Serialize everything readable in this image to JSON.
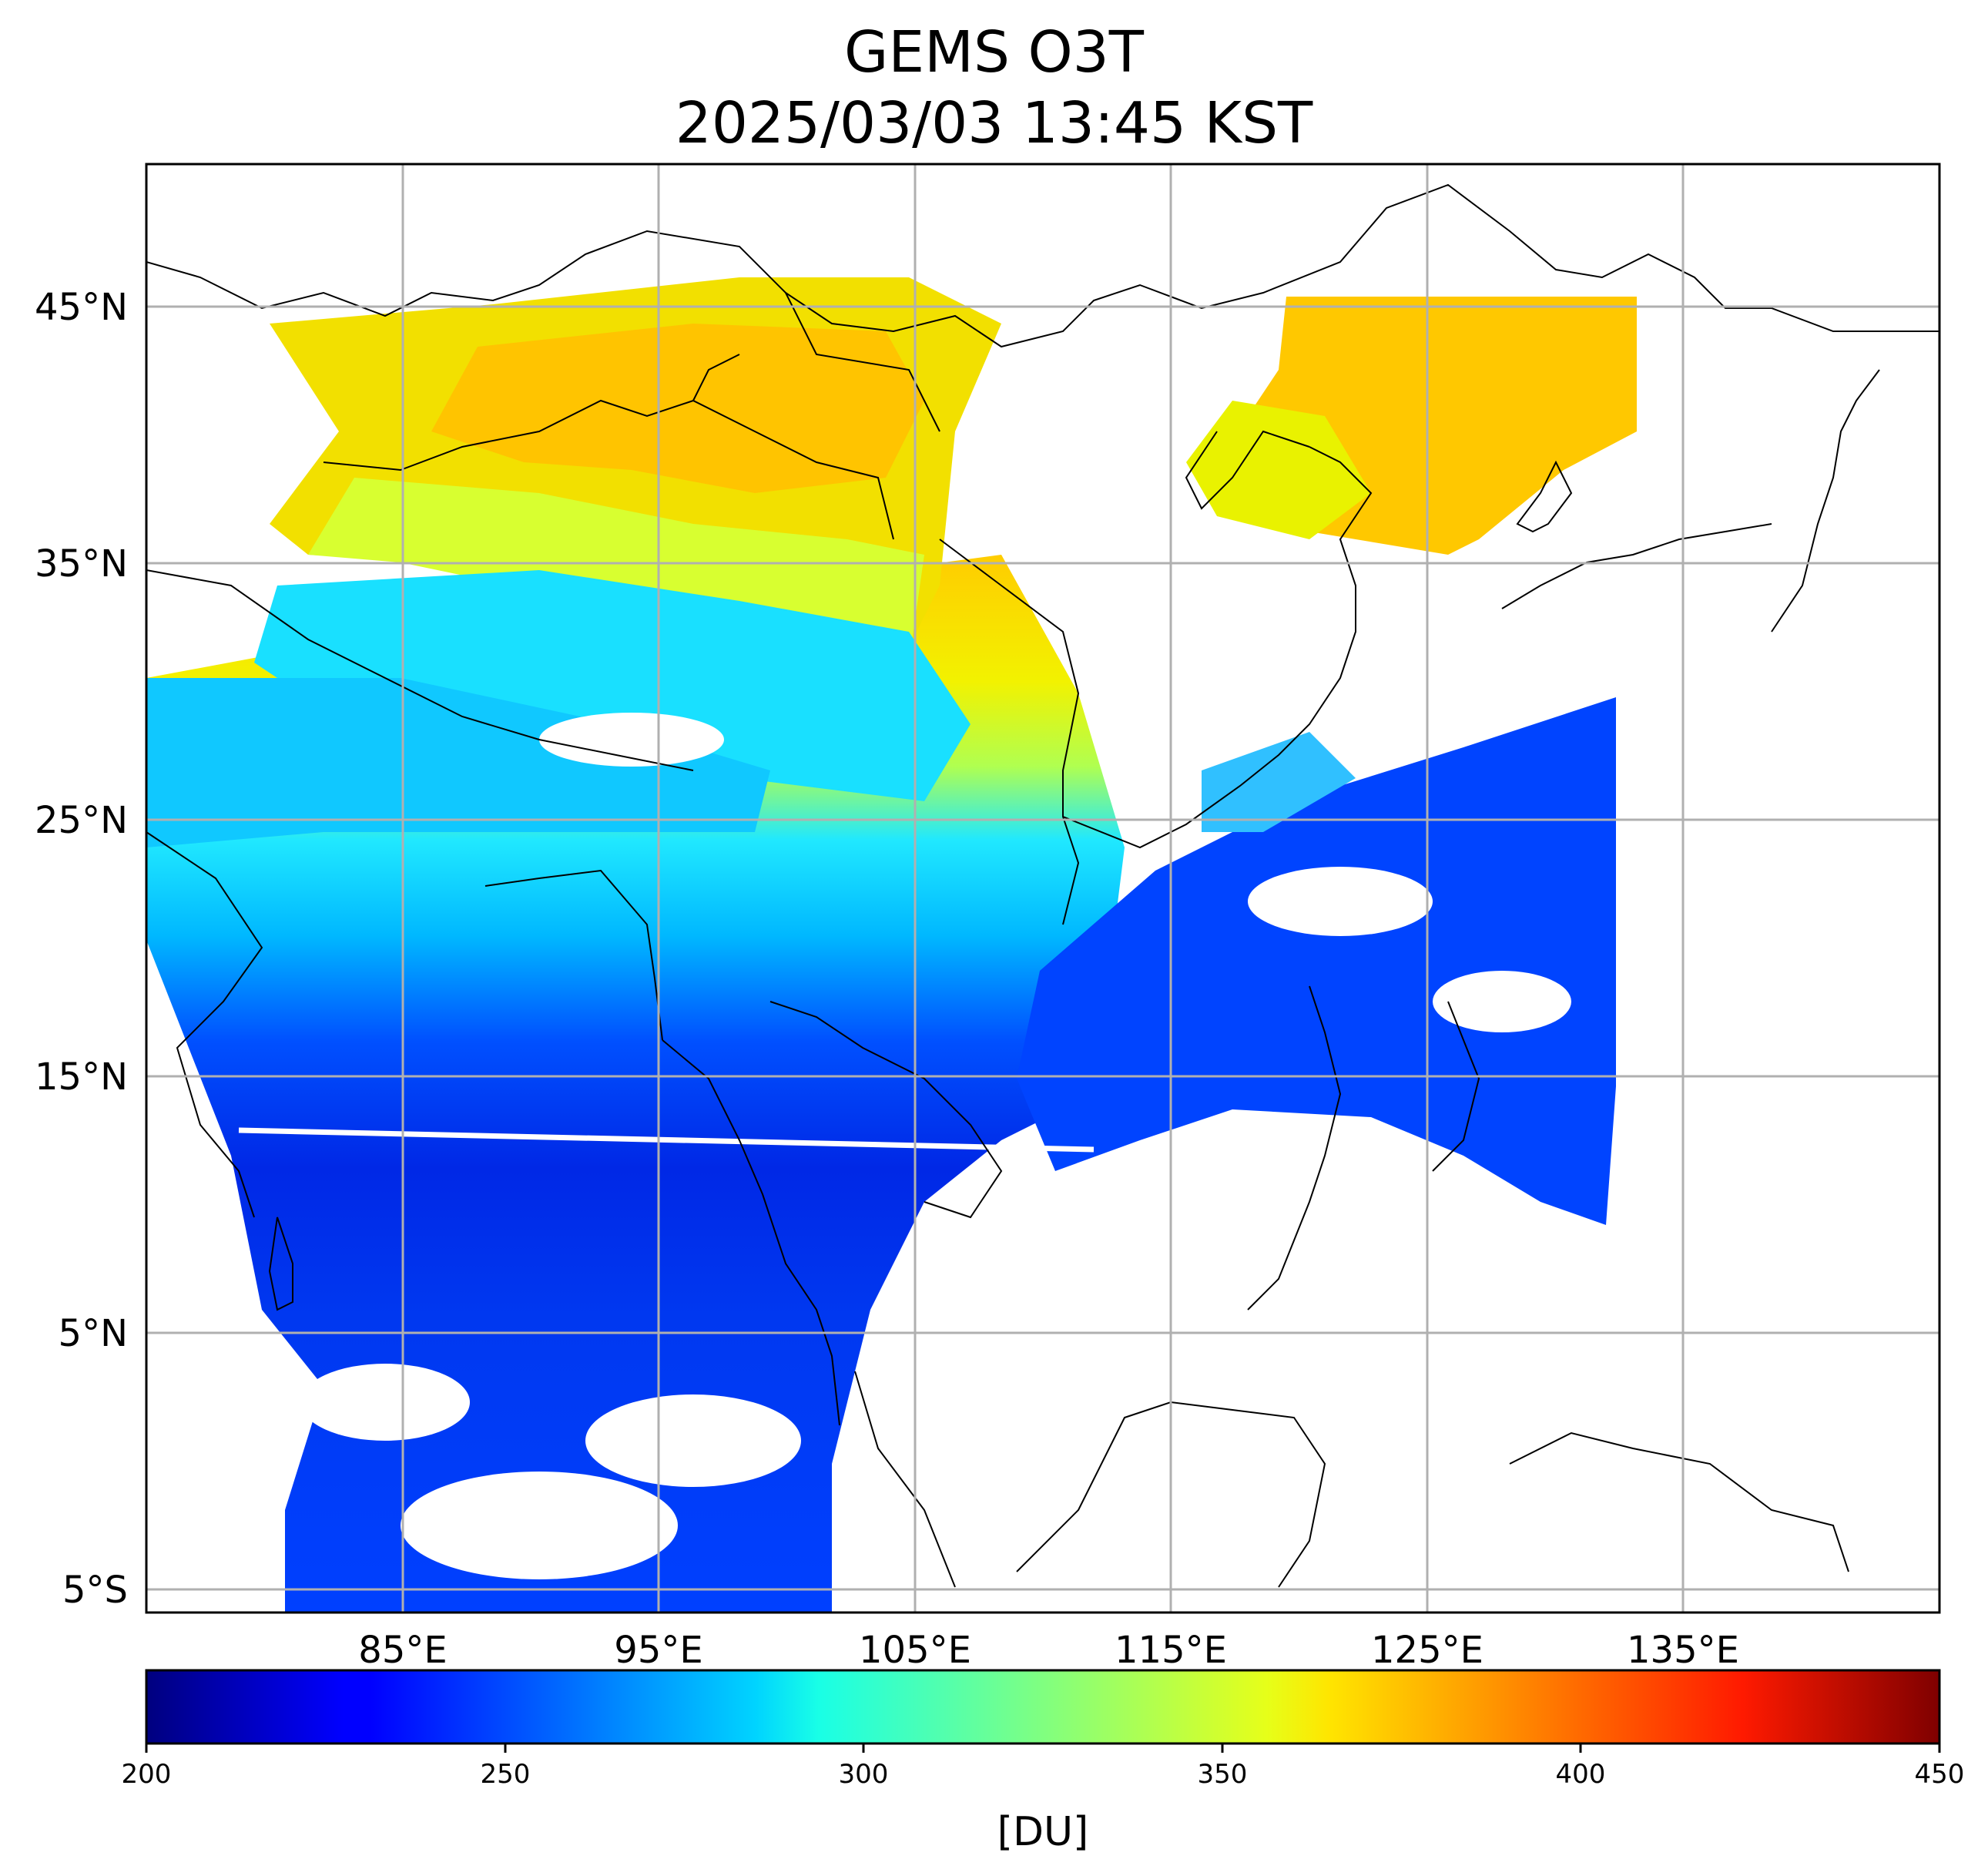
{
  "title": {
    "line1": "GEMS O3T",
    "line2": "2025/03/03 13:45 KST"
  },
  "map": {
    "latitude_labels": [
      "45°N",
      "35°N",
      "25°N",
      "15°N",
      "5°N",
      "5°S"
    ],
    "longitude_labels": [
      "85°E",
      "95°E",
      "105°E",
      "115°E",
      "125°E",
      "135°E"
    ],
    "extent": {
      "lon_min": 75,
      "lon_max": 145,
      "lat_min": -6,
      "lat_max": 50.5
    },
    "gridlines": true
  },
  "colorbar": {
    "colormap": "jet",
    "ticks": [
      "200",
      "250",
      "300",
      "350",
      "400",
      "450"
    ],
    "range": [
      200,
      450
    ],
    "label": "[DU]"
  },
  "colors": {
    "low": "#00007f",
    "mid_blue": "#0040ff",
    "cyan": "#00ffff",
    "yellow": "#ffff00",
    "orange": "#ff8000",
    "high": "#7f0000"
  }
}
